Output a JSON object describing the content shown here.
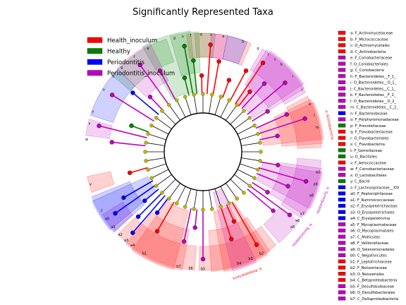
{
  "chart_data": {
    "type": "cladogram",
    "title": "Significantly Represented Taxa",
    "legend": {
      "placement": "top-left",
      "entries": [
        {
          "name": "Health_inoculum",
          "color": "#ff0000"
        },
        {
          "name": "Healthy",
          "color": "#008000"
        },
        {
          "name": "Periodontitis",
          "color": "#0000ff"
        },
        {
          "name": "Periodontitis_inoculum",
          "color": "#bf00bf"
        }
      ]
    },
    "key_legend": {
      "placement": "right",
      "entries": [
        {
          "key": "a",
          "taxon": "F_Actinomycetaceae",
          "color": "#ff0000"
        },
        {
          "key": "b",
          "taxon": "F_Micrococcaceae",
          "color": "#ff0000"
        },
        {
          "key": "c",
          "taxon": "O_Actinomycetales",
          "color": "#ff0000"
        },
        {
          "key": "d",
          "taxon": "C_Actinobacteria",
          "color": "#ff0000"
        },
        {
          "key": "e",
          "taxon": "F_Coriobacteriaceae",
          "color": "#bf00bf"
        },
        {
          "key": "f",
          "taxon": "O_Coriobacteriales",
          "color": "#bf00bf"
        },
        {
          "key": "g",
          "taxon": "C_Coriobacteria",
          "color": "#bf00bf"
        },
        {
          "key": "h",
          "taxon": "F_Bacteroidetes__F_1_",
          "color": "#bf00bf"
        },
        {
          "key": "i",
          "taxon": "O_Bacteroidetes__O_1_",
          "color": "#bf00bf"
        },
        {
          "key": "j",
          "taxon": "C_Bacteroidetes__C_1_",
          "color": "#bf00bf"
        },
        {
          "key": "k",
          "taxon": "F_Bacteroidetes__F_2_",
          "color": "#bf00bf"
        },
        {
          "key": "l",
          "taxon": "O_Bacteroidetes__O_2_",
          "color": "#bf00bf"
        },
        {
          "key": "m",
          "taxon": "C_Bacteroidetes__C_2_",
          "color": "#bf00bf"
        },
        {
          "key": "n",
          "taxon": "F_Bacteroidaceae",
          "color": "#0000ff"
        },
        {
          "key": "o",
          "taxon": "F_Porphyromonadaceae",
          "color": "#bf00bf"
        },
        {
          "key": "p",
          "taxon": "F_Prevotellaceae",
          "color": "#008000"
        },
        {
          "key": "q",
          "taxon": "F_Flavobacteriaceae",
          "color": "#ff0000"
        },
        {
          "key": "r",
          "taxon": "O_Flavobacteriales",
          "color": "#ff0000"
        },
        {
          "key": "s",
          "taxon": "C_Flavobacteriia",
          "color": "#ff0000"
        },
        {
          "key": "t",
          "taxon": "F_Gemellaceae",
          "color": "#008000"
        },
        {
          "key": "u",
          "taxon": "O_Bacillales",
          "color": "#008000"
        },
        {
          "key": "v",
          "taxon": "F_Aerococcaceae",
          "color": "#ff0000"
        },
        {
          "key": "w",
          "taxon": "F_Carnobacteriaceae",
          "color": "#bf00bf"
        },
        {
          "key": "x",
          "taxon": "O_Lactobacillales",
          "color": "#bf00bf"
        },
        {
          "key": "y",
          "taxon": "C_Bacilli",
          "color": "#008000"
        },
        {
          "key": "z",
          "taxon": "F_Lachnospiraceae__XIV",
          "color": "#0000ff"
        },
        {
          "key": "a0",
          "taxon": "F_Peptoniphilaceae",
          "color": "#0000ff"
        },
        {
          "key": "a1",
          "taxon": "F_Ruminococcaceae",
          "color": "#0000ff"
        },
        {
          "key": "a2",
          "taxon": "F_Erysipelotrichaceae",
          "color": "#0000ff"
        },
        {
          "key": "a3",
          "taxon": "O_Erysipelotrichales",
          "color": "#0000ff"
        },
        {
          "key": "a4",
          "taxon": "C_Erysipelotrichia",
          "color": "#0000ff"
        },
        {
          "key": "a5",
          "taxon": "F_Mycoplasmataceae",
          "color": "#bf00bf"
        },
        {
          "key": "a6",
          "taxon": "O_Mycoplasmatales",
          "color": "#bf00bf"
        },
        {
          "key": "a7",
          "taxon": "C_Mollicutes",
          "color": "#bf00bf"
        },
        {
          "key": "a8",
          "taxon": "F_Veillonellaceae",
          "color": "#bf00bf"
        },
        {
          "key": "a9",
          "taxon": "O_Selenomonadales",
          "color": "#bf00bf"
        },
        {
          "key": "b0",
          "taxon": "C_Negativicutes",
          "color": "#bf00bf"
        },
        {
          "key": "b1",
          "taxon": "F_Leptotrichiaceae",
          "color": "#ff0000"
        },
        {
          "key": "b2",
          "taxon": "F_Neisseriaceae",
          "color": "#ff0000"
        },
        {
          "key": "b3",
          "taxon": "O_Neisseriales",
          "color": "#ff0000"
        },
        {
          "key": "b4",
          "taxon": "C_Betaproteobacteria",
          "color": "#ff0000"
        },
        {
          "key": "b5",
          "taxon": "F_Desulfobulbaceae",
          "color": "#bf00bf"
        },
        {
          "key": "b6",
          "taxon": "O_Desulfobacterales",
          "color": "#bf00bf"
        },
        {
          "key": "b7",
          "taxon": "C_Deltaproteobacteria",
          "color": "#bf00bf"
        }
      ]
    },
    "clades": [
      {
        "label": "b",
        "group": "Health_inoculum",
        "angle": -70
      },
      {
        "label": "a",
        "group": "Health_inoculum",
        "angle": -80
      },
      {
        "label": "c",
        "group": "Health_inoculum",
        "angle": -86
      },
      {
        "label": "d",
        "group": "Health_inoculum",
        "angle": -91
      },
      {
        "label": "e",
        "group": "Periodontitis_inoculum",
        "angle": -118
      },
      {
        "label": "f",
        "group": "Periodontitis_inoculum",
        "angle": -126
      },
      {
        "label": "g",
        "group": "Periodontitis_inoculum",
        "angle": -134
      },
      {
        "label": "h",
        "group": "Periodontitis_inoculum",
        "angle": -48
      },
      {
        "label": "i",
        "group": "Periodontitis_inoculum",
        "angle": -40
      },
      {
        "label": "j",
        "group": "Periodontitis_inoculum",
        "angle": -32
      },
      {
        "label": "k",
        "group": "Periodontitis_inoculum",
        "angle": -24
      },
      {
        "label": "l",
        "group": "Periodontitis_inoculum",
        "angle": -18
      },
      {
        "label": "m",
        "group": "Periodontitis_inoculum",
        "angle": -12
      },
      {
        "label": "n",
        "group": "Periodontitis",
        "angle": -140
      },
      {
        "label": "o",
        "group": "Periodontitis_inoculum",
        "angle": -148
      },
      {
        "label": "p",
        "group": "Healthy",
        "angle": -104
      },
      {
        "label": "q",
        "group": "Health_inoculum",
        "angle": -62
      },
      {
        "label": "r",
        "group": "Health_inoculum",
        "angle": -56
      },
      {
        "label": "s",
        "group": "Health_inoculum",
        "angle": -52
      },
      {
        "label": "t",
        "group": "Healthy",
        "angle": -96
      },
      {
        "label": "u",
        "group": "Healthy",
        "angle": -100
      },
      {
        "label": "v",
        "group": "Health_inoculum",
        "angle": 164
      },
      {
        "label": "w",
        "group": "Periodontitis_inoculum",
        "angle": 186
      },
      {
        "label": "x",
        "group": "Periodontitis_inoculum",
        "angle": 194
      },
      {
        "label": "y",
        "group": "Healthy",
        "angle": 200
      },
      {
        "label": "z",
        "group": "Periodontitis",
        "angle": 150
      },
      {
        "label": "a0",
        "group": "Periodontitis",
        "angle": 145
      },
      {
        "label": "a1",
        "group": "Periodontitis",
        "angle": 140
      },
      {
        "label": "a2",
        "group": "Periodontitis",
        "angle": 135
      },
      {
        "label": "a3",
        "group": "Periodontitis",
        "angle": 131
      },
      {
        "label": "a4",
        "group": "Periodontitis",
        "angle": 127
      },
      {
        "label": "a5",
        "group": "Periodontitis_inoculum",
        "angle": 40
      },
      {
        "label": "a6",
        "group": "Periodontitis_inoculum",
        "angle": 36
      },
      {
        "label": "a7",
        "group": "Periodontitis_inoculum",
        "angle": 32
      },
      {
        "label": "a8",
        "group": "Periodontitis_inoculum",
        "angle": 22
      },
      {
        "label": "a9",
        "group": "Periodontitis_inoculum",
        "angle": 16
      },
      {
        "label": "b0",
        "group": "Periodontitis_inoculum",
        "angle": 10
      },
      {
        "label": "b1",
        "group": "Health_inoculum",
        "angle": 120
      },
      {
        "label": "b2",
        "group": "Health_inoculum",
        "angle": 60
      },
      {
        "label": "b3",
        "group": "Health_inoculum",
        "angle": 66
      },
      {
        "label": "b4",
        "group": "Health_inoculum",
        "angle": 72
      },
      {
        "label": "b5",
        "group": "Periodontitis_inoculum",
        "angle": 90
      },
      {
        "label": "b6",
        "group": "Periodontitis_inoculum",
        "angle": 96
      },
      {
        "label": "b7",
        "group": "Periodontitis_inoculum",
        "angle": 102
      }
    ],
    "sectors": [
      {
        "group": "Health_inoculum",
        "start": -98,
        "end": -66,
        "ring": 4
      },
      {
        "group": "Healthy",
        "start": -140,
        "end": -108,
        "ring": 4
      },
      {
        "group": "Healthy",
        "start": -106,
        "end": -92,
        "ring": 3
      },
      {
        "group": "Healthy",
        "start": -120,
        "end": -96,
        "ring": 2
      },
      {
        "group": "Periodontitis_inoculum",
        "start": -136,
        "end": -116,
        "ring": 3
      },
      {
        "group": "Healthy",
        "start": -94,
        "end": -84,
        "ring": 4
      },
      {
        "group": "Periodontitis_inoculum",
        "start": -86,
        "end": -78,
        "ring": 4
      },
      {
        "group": "Periodontitis",
        "start": -78,
        "end": -68,
        "ring": 4
      },
      {
        "group": "Periodontitis",
        "start": -162,
        "end": -136,
        "ring": 4
      },
      {
        "group": "Periodontitis_inoculum",
        "start": -172,
        "end": -164,
        "ring": 4
      },
      {
        "group": "Periodontitis_inoculum",
        "start": -60,
        "end": -30,
        "ring": 4
      },
      {
        "group": "Periodontitis_inoculum",
        "start": -58,
        "end": -32,
        "ring": 3
      },
      {
        "group": "Periodontitis_inoculum",
        "start": -56,
        "end": -34,
        "ring": 2
      },
      {
        "group": "Health_inoculum",
        "start": -28,
        "end": -2,
        "ring": 4
      },
      {
        "group": "Health_inoculum",
        "start": -26,
        "end": -4,
        "ring": 3
      },
      {
        "group": "Health_inoculum",
        "start": -24,
        "end": -6,
        "ring": 2
      },
      {
        "group": "Periodontitis_inoculum",
        "start": 4,
        "end": 34,
        "ring": 4
      },
      {
        "group": "Periodontitis_inoculum",
        "start": 8,
        "end": 32,
        "ring": 3
      },
      {
        "group": "Periodontitis_inoculum",
        "start": 10,
        "end": 28,
        "ring": 2
      },
      {
        "group": "Periodontitis_inoculum",
        "start": 36,
        "end": 50,
        "ring": 4
      },
      {
        "group": "Health_inoculum",
        "start": 52,
        "end": 92,
        "ring": 4
      },
      {
        "group": "Health_inoculum",
        "start": 56,
        "end": 86,
        "ring": 3
      },
      {
        "group": "Health_inoculum",
        "start": 58,
        "end": 80,
        "ring": 2
      },
      {
        "group": "Periodontitis_inoculum",
        "start": 64,
        "end": 76,
        "ring": 1
      },
      {
        "group": "Health_inoculum",
        "start": 94,
        "end": 136,
        "ring": 4
      },
      {
        "group": "Health_inoculum",
        "start": 100,
        "end": 130,
        "ring": 3
      },
      {
        "group": "Health_inoculum",
        "start": 104,
        "end": 126,
        "ring": 2
      },
      {
        "group": "Periodontitis_inoculum",
        "start": 138,
        "end": 148,
        "ring": 4
      },
      {
        "group": "Periodontitis",
        "start": 138,
        "end": 158,
        "ring": 3
      },
      {
        "group": "Periodontitis",
        "start": 140,
        "end": 156,
        "ring": 2
      },
      {
        "group": "Health_inoculum",
        "start": 160,
        "end": 168,
        "ring": 4
      }
    ],
    "arc_labels": [
      {
        "text": "a: Actinobacteria",
        "angle": -12,
        "color": "#ff0000"
      },
      {
        "text": "a: Synergistetes",
        "angle": 22,
        "color": "#bf00bf"
      },
      {
        "text": "b: Bacteroidetes",
        "angle": 40,
        "color": "#bf00bf"
      },
      {
        "text": "b: Proteobacteria",
        "angle": 70,
        "color": "#ff0000"
      }
    ]
  }
}
